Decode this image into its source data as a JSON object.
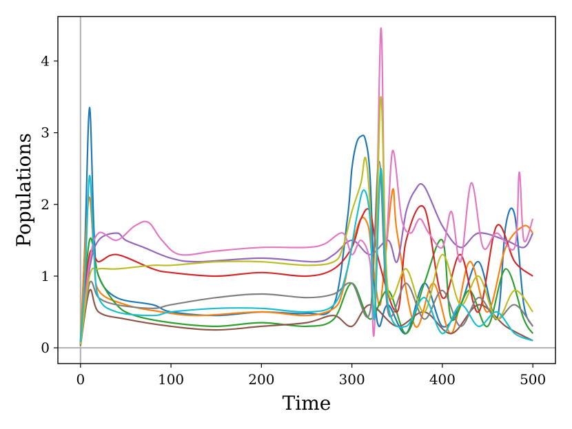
{
  "chart_data": {
    "type": "line",
    "title": "",
    "xlabel": "Time",
    "ylabel": "Populations",
    "xlim": [
      -25,
      525
    ],
    "ylim": [
      -0.22,
      4.62
    ],
    "x_ticks": [
      0,
      100,
      200,
      300,
      400,
      500
    ],
    "x_tick_labels": [
      "0",
      "100",
      "200",
      "300",
      "400",
      "500"
    ],
    "y_ticks": [
      0,
      1,
      2,
      3,
      4
    ],
    "y_tick_labels": [
      "0",
      "1",
      "2",
      "3",
      "4"
    ],
    "reference_lines": [
      {
        "orientation": "horizontal",
        "value": 0,
        "color": "#b0b0b0"
      },
      {
        "orientation": "vertical",
        "value": 0,
        "color": "#b0b0b0"
      }
    ],
    "grid": false,
    "legend": "none",
    "colors": [
      "#1f77b4",
      "#ff7f0e",
      "#2ca02c",
      "#d62728",
      "#9467bd",
      "#8c564b",
      "#e377c2",
      "#7f7f7f",
      "#bcbd22",
      "#17becf"
    ],
    "series": [
      {
        "x": [
          0,
          5,
          10,
          15,
          20,
          40,
          80,
          100,
          150,
          200,
          250,
          280,
          295,
          300,
          305,
          310,
          315,
          320,
          325,
          330,
          340,
          360,
          380,
          400,
          420,
          440,
          460,
          470,
          480,
          490,
          500
        ],
        "values": [
          0.05,
          1.5,
          3.35,
          1.6,
          1.0,
          0.7,
          0.6,
          0.5,
          0.45,
          0.5,
          0.48,
          0.6,
          1.8,
          2.5,
          2.85,
          2.95,
          2.9,
          2.4,
          0.8,
          0.3,
          0.6,
          0.2,
          0.9,
          0.3,
          0.6,
          1.2,
          0.4,
          1.7,
          1.85,
          0.6,
          0.3
        ],
        "color": "#1f77b4"
      },
      {
        "x": [
          0,
          5,
          10,
          15,
          20,
          50,
          90,
          130,
          200,
          250,
          280,
          290,
          300,
          310,
          318,
          322,
          330,
          335,
          345,
          350,
          370,
          390,
          410,
          430,
          450,
          470,
          490,
          500
        ],
        "values": [
          0.1,
          1.4,
          2.1,
          1.3,
          0.8,
          0.6,
          0.5,
          0.45,
          0.5,
          0.45,
          0.55,
          0.8,
          1.4,
          1.8,
          1.7,
          1.3,
          0.6,
          1.0,
          2.2,
          1.6,
          0.3,
          0.9,
          0.2,
          1.2,
          0.5,
          1.4,
          1.7,
          1.6
        ],
        "color": "#ff7f0e"
      },
      {
        "x": [
          0,
          10,
          20,
          40,
          60,
          100,
          150,
          200,
          250,
          280,
          300,
          320,
          340,
          360,
          380,
          400,
          410,
          430,
          450,
          470,
          490,
          500
        ],
        "values": [
          0.05,
          1.5,
          1.0,
          0.6,
          0.45,
          0.35,
          0.3,
          0.35,
          0.3,
          0.4,
          0.9,
          0.4,
          0.8,
          0.2,
          0.9,
          1.5,
          0.4,
          0.8,
          0.3,
          1.1,
          0.4,
          0.2
        ],
        "color": "#2ca02c"
      },
      {
        "x": [
          0,
          10,
          20,
          40,
          80,
          100,
          150,
          200,
          250,
          280,
          300,
          310,
          320,
          330,
          350,
          360,
          380,
          400,
          420,
          440,
          460,
          480,
          500
        ],
        "values": [
          0.08,
          1.3,
          1.2,
          1.3,
          1.1,
          1.05,
          1.0,
          1.05,
          1.0,
          1.1,
          1.4,
          1.8,
          1.9,
          1.2,
          0.5,
          1.5,
          1.95,
          0.7,
          1.3,
          0.5,
          1.7,
          1.2,
          1.0
        ],
        "color": "#d62728"
      },
      {
        "x": [
          0,
          10,
          20,
          40,
          50,
          70,
          100,
          130,
          200,
          260,
          280,
          300,
          320,
          340,
          350,
          360,
          370,
          380,
          400,
          420,
          440,
          470,
          490,
          500
        ],
        "values": [
          0.06,
          1.1,
          1.5,
          1.6,
          1.5,
          1.4,
          1.25,
          1.2,
          1.25,
          1.2,
          1.3,
          1.5,
          1.3,
          1.5,
          1.2,
          1.9,
          2.2,
          2.25,
          1.7,
          1.4,
          1.6,
          1.5,
          1.4,
          1.6
        ],
        "color": "#9467bd"
      },
      {
        "x": [
          0,
          10,
          20,
          50,
          100,
          150,
          200,
          250,
          280,
          300,
          320,
          350,
          380,
          410,
          440,
          470,
          500
        ],
        "values": [
          0.03,
          0.8,
          0.5,
          0.4,
          0.3,
          0.25,
          0.3,
          0.35,
          0.45,
          0.3,
          0.6,
          0.3,
          0.5,
          0.2,
          0.6,
          0.3,
          0.1
        ],
        "color": "#8c564b"
      },
      {
        "x": [
          0,
          10,
          20,
          40,
          60,
          75,
          90,
          110,
          150,
          200,
          250,
          270,
          290,
          300,
          310,
          320,
          325,
          332,
          337,
          345,
          355,
          365,
          375,
          385,
          400,
          410,
          420,
          432,
          445,
          460,
          480,
          485,
          490,
          500
        ],
        "values": [
          0.05,
          1.2,
          1.6,
          1.5,
          1.7,
          1.75,
          1.5,
          1.3,
          1.35,
          1.4,
          1.4,
          1.45,
          1.6,
          1.3,
          1.5,
          1.2,
          0.3,
          4.45,
          1.5,
          2.75,
          1.8,
          1.6,
          1.8,
          1.6,
          1.4,
          1.9,
          1.2,
          2.3,
          1.4,
          1.6,
          1.4,
          2.45,
          1.5,
          1.8
        ],
        "color": "#e377c2"
      },
      {
        "x": [
          0,
          10,
          20,
          40,
          80,
          100,
          150,
          200,
          250,
          280,
          300,
          320,
          330,
          340,
          360,
          380,
          400,
          420,
          440,
          460,
          480,
          500
        ],
        "values": [
          0.04,
          0.9,
          0.7,
          0.6,
          0.55,
          0.6,
          0.7,
          0.75,
          0.7,
          0.75,
          0.9,
          0.5,
          2.6,
          0.5,
          0.9,
          0.4,
          0.8,
          0.3,
          0.7,
          0.4,
          0.6,
          0.3
        ],
        "color": "#7f7f7f"
      },
      {
        "x": [
          0,
          10,
          20,
          40,
          80,
          100,
          150,
          200,
          250,
          280,
          290,
          300,
          310,
          315,
          320,
          325,
          332,
          340,
          360,
          380,
          400,
          420,
          440,
          460,
          480,
          500
        ],
        "values": [
          0.05,
          1.0,
          1.1,
          1.1,
          1.15,
          1.15,
          1.2,
          1.2,
          1.15,
          1.2,
          1.4,
          1.9,
          2.3,
          2.65,
          2.0,
          0.5,
          3.5,
          0.8,
          1.1,
          0.5,
          1.3,
          0.6,
          1.0,
          0.4,
          0.8,
          0.5
        ],
        "color": "#bcbd22"
      },
      {
        "x": [
          0,
          5,
          10,
          15,
          20,
          40,
          80,
          100,
          150,
          200,
          250,
          280,
          295,
          305,
          313,
          320,
          325,
          332,
          340,
          360,
          380,
          400,
          420,
          440,
          460,
          480,
          500
        ],
        "values": [
          0.08,
          1.0,
          2.4,
          1.3,
          0.7,
          0.5,
          0.45,
          0.5,
          0.55,
          0.55,
          0.5,
          0.6,
          1.1,
          1.8,
          2.2,
          1.8,
          0.4,
          2.5,
          0.6,
          0.3,
          0.7,
          0.2,
          0.6,
          0.3,
          0.5,
          0.2,
          0.1
        ],
        "color": "#17becf"
      }
    ]
  }
}
